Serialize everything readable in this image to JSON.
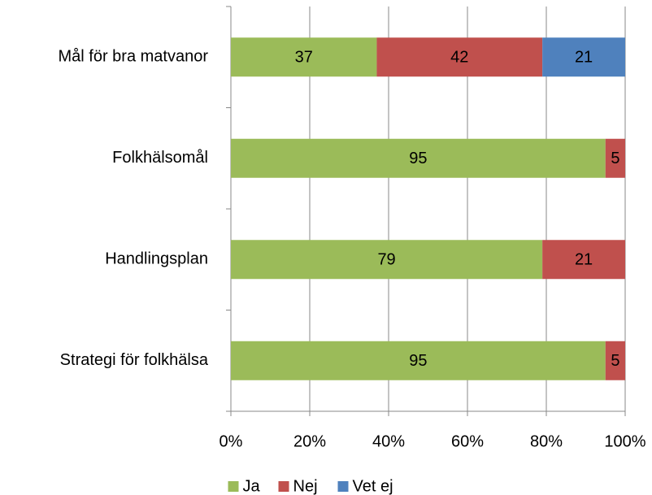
{
  "chart_data": {
    "type": "stacked-bar",
    "orientation": "horizontal",
    "categories": [
      "Mål för bra matvanor",
      "Folkhälsomål",
      "Handlingsplan",
      "Strategi för folkhälsa"
    ],
    "series": [
      {
        "name": "Ja",
        "color": "#9bbb59",
        "values": [
          37,
          95,
          79,
          95
        ]
      },
      {
        "name": "Nej",
        "color": "#c0504d",
        "values": [
          42,
          5,
          21,
          5
        ]
      },
      {
        "name": "Vet ej",
        "color": "#4f81bd",
        "values": [
          21,
          null,
          null,
          null
        ]
      }
    ],
    "xlim": [
      0,
      100
    ],
    "xticks": [
      {
        "value": 0,
        "label": "0%"
      },
      {
        "value": 20,
        "label": "20%"
      },
      {
        "value": 40,
        "label": "40%"
      },
      {
        "value": 60,
        "label": "60%"
      },
      {
        "value": 80,
        "label": "80%"
      },
      {
        "value": 100,
        "label": "100%"
      }
    ],
    "grid": true,
    "legend": "bottom"
  }
}
